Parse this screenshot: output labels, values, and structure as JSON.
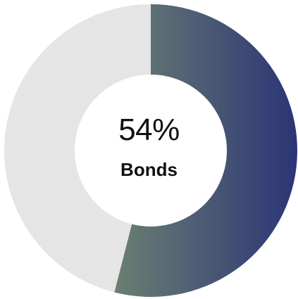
{
  "chart_data": {
    "type": "pie",
    "variant": "donut",
    "categories": [
      "Bonds",
      ""
    ],
    "values": [
      54,
      46
    ],
    "center_value_label": "54%",
    "center_category_label": "Bonds",
    "colors": {
      "highlight_gradient_start": "#6b7f72",
      "highlight_gradient_end": "#2b3576",
      "remainder": "#e5e5e5",
      "hole": "#ffffff"
    },
    "legend": "none"
  }
}
